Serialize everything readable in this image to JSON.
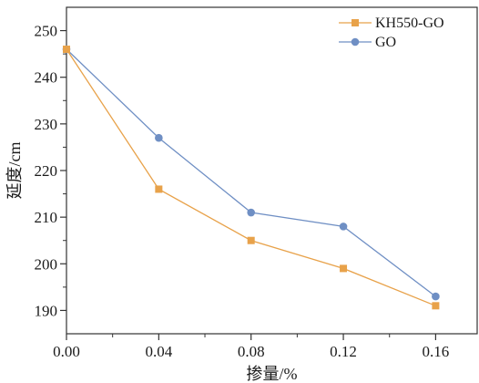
{
  "chart_data": {
    "type": "line",
    "x": [
      0.0,
      0.04,
      0.08,
      0.12,
      0.16
    ],
    "x_tick_labels": [
      "0.00",
      "0.04",
      "0.08",
      "0.12",
      "0.16"
    ],
    "y_ticks": [
      190,
      200,
      210,
      220,
      230,
      240,
      250
    ],
    "y_tick_labels": [
      "190",
      "200",
      "210",
      "220",
      "230",
      "240",
      "250"
    ],
    "xlabel": "掺量/%",
    "ylabel": "延度/cm",
    "xlim": [
      0.0,
      0.178
    ],
    "ylim": [
      185,
      255
    ],
    "grid": false,
    "legend_position": "top-right",
    "series": [
      {
        "name": "KH550-GO",
        "marker": "square",
        "color": "#E8A24A",
        "values": [
          246,
          216,
          205,
          199,
          191
        ]
      },
      {
        "name": "GO",
        "marker": "circle",
        "color": "#6F8FC4",
        "values": [
          246,
          227,
          211,
          208,
          193
        ]
      }
    ]
  }
}
